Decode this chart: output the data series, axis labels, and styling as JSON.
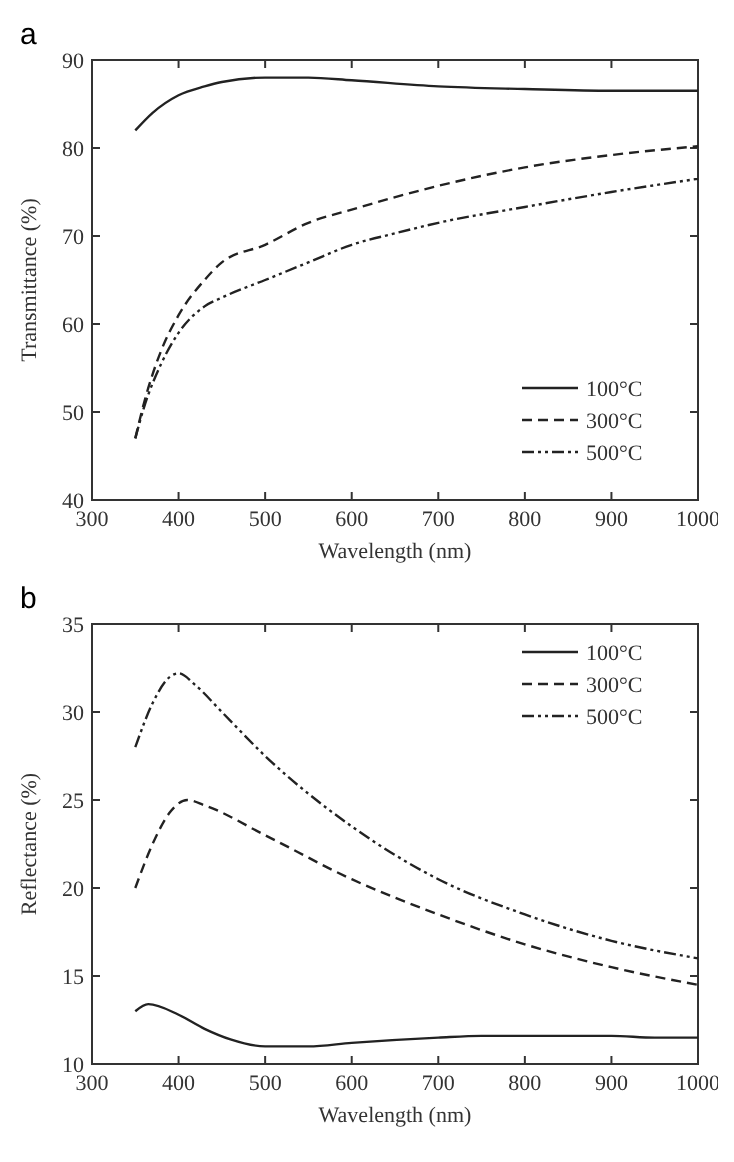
{
  "chart_data": [
    {
      "type": "line",
      "title": "a",
      "xlabel": "Wavelength (nm)",
      "ylabel": "Transmittance (%)",
      "xlim": [
        300,
        1000
      ],
      "xticks": [
        300,
        400,
        500,
        600,
        700,
        800,
        900,
        1000
      ],
      "ylim": [
        40,
        90
      ],
      "yticks": [
        40,
        50,
        60,
        70,
        80,
        90
      ],
      "legend": "bottom right",
      "grid": false,
      "series": [
        {
          "name": "100°C",
          "color": "#222222",
          "line_style": "solid",
          "x": [
            350,
            370,
            400,
            430,
            450,
            500,
            550,
            600,
            700,
            800,
            900,
            1000
          ],
          "values": [
            82,
            84,
            86,
            87,
            87.5,
            88,
            88,
            87.7,
            87,
            86.7,
            86.5,
            86.5
          ]
        },
        {
          "name": "300°C",
          "color": "#222222",
          "line_style": "dashed",
          "x": [
            350,
            360,
            380,
            400,
            430,
            450,
            500,
            550,
            600,
            700,
            800,
            900,
            1000
          ],
          "values": [
            47,
            51,
            57,
            61,
            65,
            67,
            69,
            71.5,
            73,
            75.7,
            77.8,
            79.2,
            80.2
          ]
        },
        {
          "name": "500°C",
          "color": "#222222",
          "line_style": "dotted",
          "x": [
            350,
            360,
            380,
            400,
            430,
            450,
            500,
            550,
            600,
            650,
            700,
            800,
            900,
            1000
          ],
          "values": [
            47,
            50.5,
            55.5,
            59,
            62,
            63,
            65,
            67,
            69,
            70.3,
            71.5,
            73.3,
            75,
            76.5
          ]
        }
      ]
    },
    {
      "type": "line",
      "title": "b",
      "xlabel": "Wavelength (nm)",
      "ylabel": "Reflectance (%)",
      "xlim": [
        300,
        1000
      ],
      "xticks": [
        300,
        400,
        500,
        600,
        700,
        800,
        900,
        1000
      ],
      "ylim": [
        10,
        35
      ],
      "yticks": [
        10,
        15,
        20,
        25,
        30,
        35
      ],
      "legend": "top right",
      "grid": false,
      "series": [
        {
          "name": "100°C",
          "color": "#222222",
          "line_style": "solid",
          "x": [
            350,
            365,
            400,
            430,
            460,
            500,
            550,
            600,
            700,
            750,
            900,
            950,
            1000
          ],
          "values": [
            13,
            13.4,
            12.8,
            12,
            11.4,
            11,
            11,
            11.2,
            11.5,
            11.6,
            11.6,
            11.5,
            11.5
          ]
        },
        {
          "name": "300°C",
          "color": "#222222",
          "line_style": "dashed",
          "x": [
            350,
            370,
            390,
            410,
            430,
            500,
            600,
            700,
            800,
            900,
            1000
          ],
          "values": [
            20,
            22.5,
            24.3,
            25,
            24.7,
            23,
            20.5,
            18.5,
            16.8,
            15.5,
            14.5
          ]
        },
        {
          "name": "500°C",
          "color": "#222222",
          "line_style": "dotted",
          "x": [
            350,
            370,
            390,
            400,
            420,
            450,
            500,
            600,
            700,
            800,
            900,
            1000
          ],
          "values": [
            28,
            30.5,
            32,
            32.2,
            31.5,
            30,
            27.5,
            23.5,
            20.5,
            18.5,
            17,
            16
          ]
        }
      ]
    }
  ]
}
